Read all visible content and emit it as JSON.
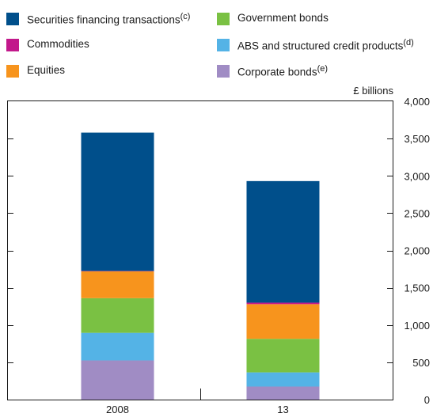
{
  "chart_data": {
    "type": "bar",
    "stacked": true,
    "unit_label": "£ billions",
    "categories": [
      "2008",
      "13"
    ],
    "series": [
      {
        "name": "Corporate bonds",
        "note": "(e)",
        "color": "#a08cc4",
        "values": [
          525,
          175
        ]
      },
      {
        "name": "ABS and structured credit products",
        "note": "(d)",
        "color": "#54b3e6",
        "values": [
          370,
          190
        ]
      },
      {
        "name": "Government bonds",
        "note": "",
        "color": "#7ac143",
        "values": [
          465,
          450
        ]
      },
      {
        "name": "Equities",
        "note": "",
        "color": "#f7941d",
        "values": [
          360,
          465
        ]
      },
      {
        "name": "Commodities",
        "note": "",
        "color": "#c2188b",
        "values": [
          5,
          20
        ]
      },
      {
        "name": "Securities financing transactions",
        "note": "(c)",
        "color": "#004f8b",
        "values": [
          1855,
          1630
        ]
      }
    ],
    "ylim": [
      0,
      4000
    ],
    "yticks": [
      0,
      500,
      1000,
      1500,
      2000,
      2500,
      3000,
      3500,
      4000
    ],
    "ytick_labels": [
      "0",
      "500",
      "1,000",
      "1,500",
      "2,000",
      "2,500",
      "3,000",
      "3,500",
      "4,000"
    ],
    "y_axis_side": "right",
    "grid": false,
    "legend_position": "top"
  }
}
